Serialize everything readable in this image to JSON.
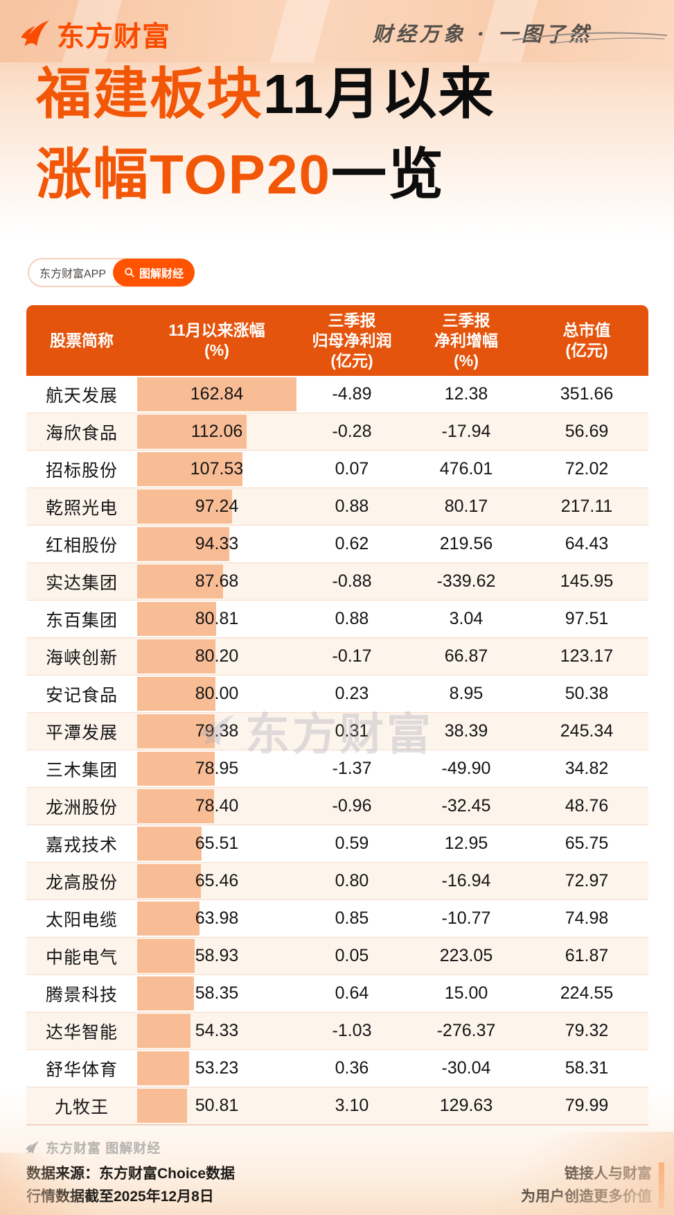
{
  "brand": {
    "logo_text": "东方财富",
    "slogan": "财经万象 · 一图了然"
  },
  "title": {
    "line1_orange": "福建板块",
    "line1_black": "11月以来",
    "line2_orange": "涨幅TOP20",
    "line2_black": "一览"
  },
  "badge": {
    "app_label": "东方财富APP",
    "tag_label": "图解财经",
    "search_icon": "search-icon"
  },
  "table": {
    "columns": [
      {
        "lines": [
          "股票简称"
        ]
      },
      {
        "lines": [
          "11月以来涨幅",
          "(%)"
        ]
      },
      {
        "lines": [
          "三季报",
          "归母净利润",
          "(亿元)"
        ]
      },
      {
        "lines": [
          "三季报",
          "净利增幅",
          "(%)"
        ]
      },
      {
        "lines": [
          "总市值",
          "(亿元)"
        ]
      }
    ],
    "rows": [
      {
        "name": "航天发展",
        "pct": "162.84",
        "profit": "-4.89",
        "growth": "12.38",
        "cap": "351.66"
      },
      {
        "name": "海欣食品",
        "pct": "112.06",
        "profit": "-0.28",
        "growth": "-17.94",
        "cap": "56.69"
      },
      {
        "name": "招标股份",
        "pct": "107.53",
        "profit": "0.07",
        "growth": "476.01",
        "cap": "72.02"
      },
      {
        "name": "乾照光电",
        "pct": "97.24",
        "profit": "0.88",
        "growth": "80.17",
        "cap": "217.11"
      },
      {
        "name": "红相股份",
        "pct": "94.33",
        "profit": "0.62",
        "growth": "219.56",
        "cap": "64.43"
      },
      {
        "name": "实达集团",
        "pct": "87.68",
        "profit": "-0.88",
        "growth": "-339.62",
        "cap": "145.95"
      },
      {
        "name": "东百集团",
        "pct": "80.81",
        "profit": "0.88",
        "growth": "3.04",
        "cap": "97.51"
      },
      {
        "name": "海峡创新",
        "pct": "80.20",
        "profit": "-0.17",
        "growth": "66.87",
        "cap": "123.17"
      },
      {
        "name": "安记食品",
        "pct": "80.00",
        "profit": "0.23",
        "growth": "8.95",
        "cap": "50.38"
      },
      {
        "name": "平潭发展",
        "pct": "79.38",
        "profit": "0.31",
        "growth": "38.39",
        "cap": "245.34"
      },
      {
        "name": "三木集团",
        "pct": "78.95",
        "profit": "-1.37",
        "growth": "-49.90",
        "cap": "34.82"
      },
      {
        "name": "龙洲股份",
        "pct": "78.40",
        "profit": "-0.96",
        "growth": "-32.45",
        "cap": "48.76"
      },
      {
        "name": "嘉戎技术",
        "pct": "65.51",
        "profit": "0.59",
        "growth": "12.95",
        "cap": "65.75"
      },
      {
        "name": "龙高股份",
        "pct": "65.46",
        "profit": "0.80",
        "growth": "-16.94",
        "cap": "72.97"
      },
      {
        "name": "太阳电缆",
        "pct": "63.98",
        "profit": "0.85",
        "growth": "-10.77",
        "cap": "74.98"
      },
      {
        "name": "中能电气",
        "pct": "58.93",
        "profit": "0.05",
        "growth": "223.05",
        "cap": "61.87"
      },
      {
        "name": "腾景科技",
        "pct": "58.35",
        "profit": "0.64",
        "growth": "15.00",
        "cap": "224.55"
      },
      {
        "name": "达华智能",
        "pct": "54.33",
        "profit": "-1.03",
        "growth": "-276.37",
        "cap": "79.32"
      },
      {
        "name": "舒华体育",
        "pct": "53.23",
        "profit": "0.36",
        "growth": "-30.04",
        "cap": "58.31"
      },
      {
        "name": "九牧王",
        "pct": "50.81",
        "profit": "3.10",
        "growth": "129.63",
        "cap": "79.99"
      }
    ]
  },
  "watermark": {
    "text": "东方财富"
  },
  "footer": {
    "brand_line": "东方财富 图解财经",
    "source": "数据来源：东方财富Choice数据",
    "date": "行情数据截至2025年12月8日",
    "right_line1": "链接人与财富",
    "right_line2": "为用户创造更多价值"
  },
  "colors": {
    "brand_orange": "#FA4C00",
    "title_orange": "#F25607",
    "header_orange": "#E5540C",
    "bar_peach": "#F9BD96",
    "row_alt_cream": "#FDF4EC",
    "separator": "#F6DCC8",
    "accent_bar": "#FF6A00"
  },
  "chart_data": {
    "type": "table",
    "title": "福建板块11月以来涨幅TOP20一览",
    "columns": [
      "股票简称",
      "11月以来涨幅(%)",
      "三季报归母净利润(亿元)",
      "三季报净利增幅(%)",
      "总市值(亿元)"
    ],
    "rows": [
      [
        "航天发展",
        162.84,
        -4.89,
        12.38,
        351.66
      ],
      [
        "海欣食品",
        112.06,
        -0.28,
        -17.94,
        56.69
      ],
      [
        "招标股份",
        107.53,
        0.07,
        476.01,
        72.02
      ],
      [
        "乾照光电",
        97.24,
        0.88,
        80.17,
        217.11
      ],
      [
        "红相股份",
        94.33,
        0.62,
        219.56,
        64.43
      ],
      [
        "实达集团",
        87.68,
        -0.88,
        -339.62,
        145.95
      ],
      [
        "东百集团",
        80.81,
        0.88,
        3.04,
        97.51
      ],
      [
        "海峡创新",
        80.2,
        -0.17,
        66.87,
        123.17
      ],
      [
        "安记食品",
        80.0,
        0.23,
        8.95,
        50.38
      ],
      [
        "平潭发展",
        79.38,
        0.31,
        38.39,
        245.34
      ],
      [
        "三木集团",
        78.95,
        -1.37,
        -49.9,
        34.82
      ],
      [
        "龙洲股份",
        78.4,
        -0.96,
        -32.45,
        48.76
      ],
      [
        "嘉戎技术",
        65.51,
        0.59,
        12.95,
        65.75
      ],
      [
        "龙高股份",
        65.46,
        0.8,
        -16.94,
        72.97
      ],
      [
        "太阳电缆",
        63.98,
        0.85,
        -10.77,
        74.98
      ],
      [
        "中能电气",
        58.93,
        0.05,
        223.05,
        61.87
      ],
      [
        "腾景科技",
        58.35,
        0.64,
        15.0,
        224.55
      ],
      [
        "达华智能",
        54.33,
        -1.03,
        -276.37,
        79.32
      ],
      [
        "舒华体育",
        53.23,
        0.36,
        -30.04,
        58.31
      ],
      [
        "九牧王",
        50.81,
        3.1,
        129.63,
        79.99
      ]
    ],
    "bar_encoding": {
      "column": "11月以来涨幅(%)",
      "max_value": 162.84,
      "style": "in-cell horizontal bar"
    }
  }
}
